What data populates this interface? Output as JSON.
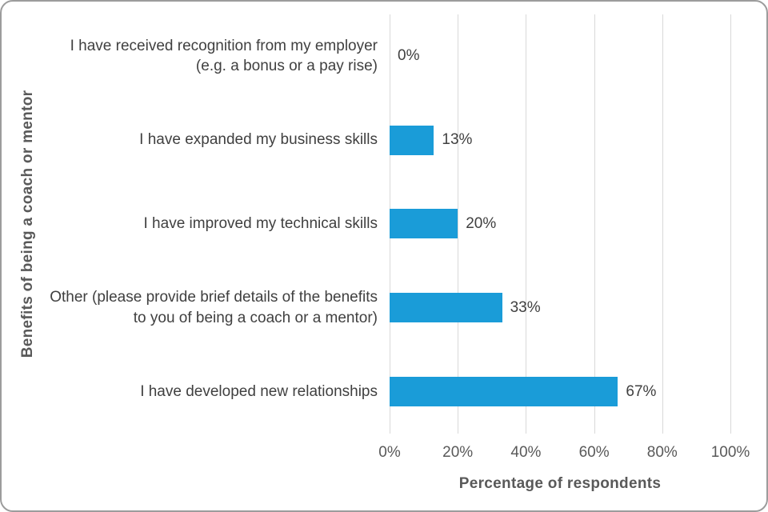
{
  "chart_data": {
    "type": "bar",
    "orientation": "horizontal",
    "categories": [
      "I have received recognition from my employer (e.g. a bonus or a pay rise)",
      "I have expanded my business skills",
      "I have improved my technical skills",
      "Other (please provide brief details of the benefits to you of being a coach or a mentor)",
      "I have developed new relationships"
    ],
    "values": [
      0,
      13,
      20,
      33,
      67
    ],
    "value_labels": [
      "0%",
      "13%",
      "20%",
      "33%",
      "67%"
    ],
    "xlabel": "Percentage of respondents",
    "ylabel": "Benefits of being a coach or mentor",
    "xlim": [
      0,
      100
    ],
    "x_ticks": [
      0,
      20,
      40,
      60,
      80,
      100
    ],
    "x_tick_labels": [
      "0%",
      "20%",
      "40%",
      "60%",
      "80%",
      "100%"
    ],
    "grid": "vertical-gridlines",
    "legend": "none",
    "bar_color": "#1A9CD8",
    "gridline_color": "#D9D9D9",
    "label_color": "#404040",
    "axis_title_color": "#595959"
  }
}
